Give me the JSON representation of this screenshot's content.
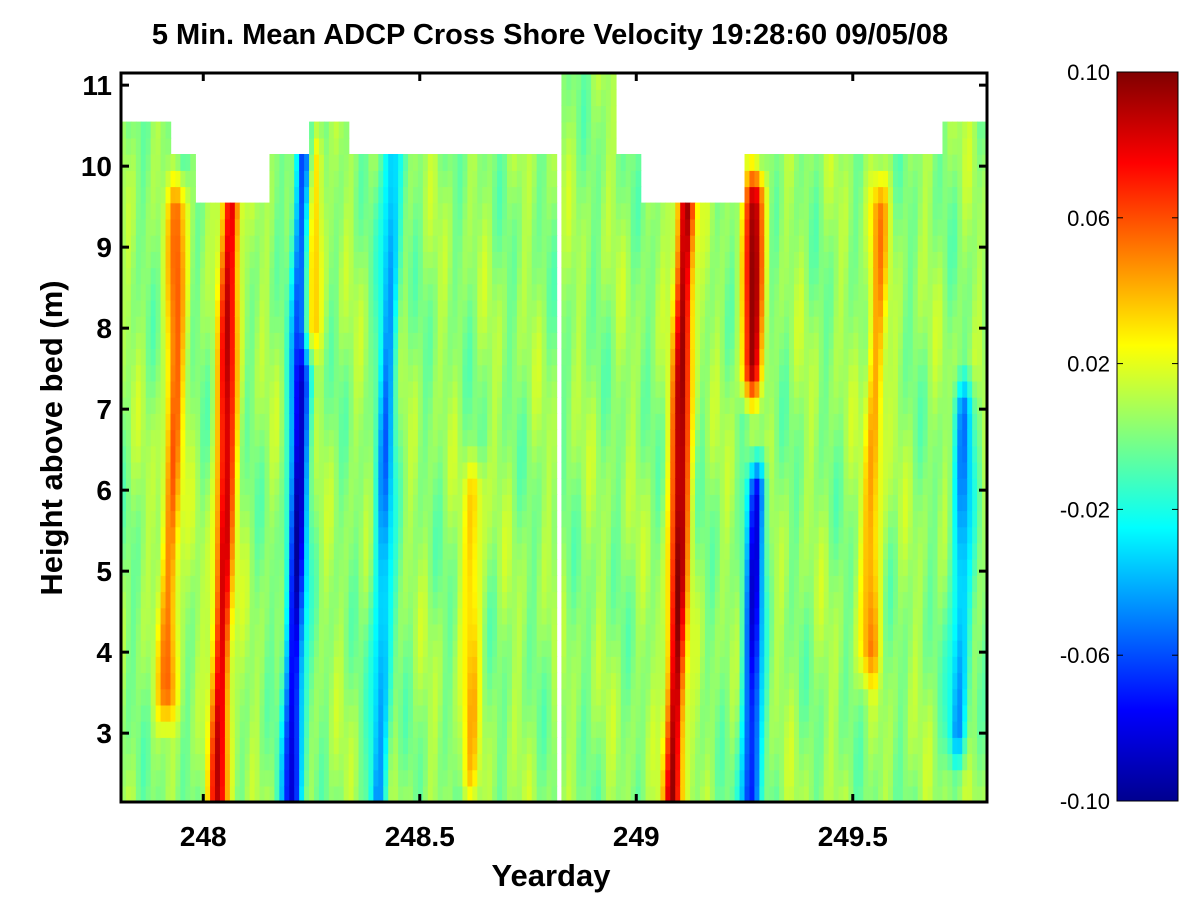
{
  "chart_data": {
    "type": "heatmap",
    "title": "5 Min. Mean ADCP Cross Shore Velocity 19:28:60 09/05/08",
    "xlabel": "Yearday",
    "ylabel": "Height above bed (m)",
    "xlim": [
      247.81,
      249.81
    ],
    "ylim": [
      2.15,
      11.15
    ],
    "x_ticks": [
      248,
      248.5,
      249,
      249.5
    ],
    "x_tick_labels": [
      "248",
      "248.5",
      "249",
      "249.5"
    ],
    "y_ticks": [
      3,
      4,
      5,
      6,
      7,
      8,
      9,
      10,
      11
    ],
    "y_tick_labels": [
      "3",
      "4",
      "5",
      "6",
      "7",
      "8",
      "9",
      "10",
      "11"
    ],
    "colormap": "jet",
    "clim": [
      -0.1,
      0.1
    ],
    "colorbar_ticks": [
      0.1,
      0.06,
      0.02,
      -0.02,
      -0.06,
      -0.1
    ],
    "colorbar_tick_labels": [
      "0.10",
      "0.06",
      "0.02",
      "-0.02",
      "-0.06",
      "-0.10"
    ],
    "data_top_height": [
      {
        "x": [
          247.81,
          247.92
        ],
        "top": 10.6
      },
      {
        "x": [
          247.92,
          247.98
        ],
        "top": 10.1
      },
      {
        "x": [
          247.98,
          248.15
        ],
        "top": 9.6
      },
      {
        "x": [
          248.15,
          248.24
        ],
        "top": 10.1
      },
      {
        "x": [
          248.24,
          248.33
        ],
        "top": 10.6
      },
      {
        "x": [
          248.33,
          248.82
        ],
        "top": 10.1
      },
      {
        "x": [
          248.82,
          248.95
        ],
        "top": 11.15
      },
      {
        "x": [
          248.95,
          249.01
        ],
        "top": 10.1
      },
      {
        "x": [
          249.01,
          249.25
        ],
        "top": 9.6
      },
      {
        "x": [
          249.25,
          249.71
        ],
        "top": 10.1
      },
      {
        "x": [
          249.71,
          249.81
        ],
        "top": 10.6
      }
    ],
    "missing_columns_yearday": [
      248.82
    ],
    "velocity_features": [
      {
        "yearday": 247.93,
        "height_range": [
          3.5,
          9.5
        ],
        "velocity": 0.05
      },
      {
        "yearday": 248.05,
        "height_range": [
          2.2,
          9.5
        ],
        "velocity": 0.08
      },
      {
        "yearday": 248.22,
        "height_range": [
          2.2,
          10.1
        ],
        "velocity": -0.09
      },
      {
        "yearday": 248.25,
        "height_range": [
          8.0,
          10.1
        ],
        "velocity": 0.06
      },
      {
        "yearday": 248.42,
        "height_range": [
          2.2,
          10.1
        ],
        "velocity": -0.05
      },
      {
        "yearday": 248.62,
        "height_range": [
          2.5,
          6.0
        ],
        "velocity": 0.03
      },
      {
        "yearday": 249.1,
        "height_range": [
          2.2,
          9.5
        ],
        "velocity": 0.09
      },
      {
        "yearday": 249.27,
        "height_range": [
          7.5,
          9.6
        ],
        "velocity": 0.09
      },
      {
        "yearday": 249.27,
        "height_range": [
          2.2,
          6.0
        ],
        "velocity": -0.08
      },
      {
        "yearday": 249.55,
        "height_range": [
          4.0,
          9.5
        ],
        "velocity": 0.04
      },
      {
        "yearday": 249.75,
        "height_range": [
          3.0,
          7.0
        ],
        "velocity": -0.05
      }
    ]
  }
}
